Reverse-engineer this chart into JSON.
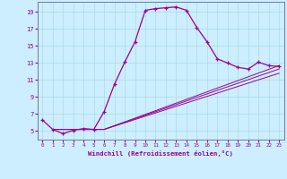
{
  "xlabel": "Windchill (Refroidissement éolien,°C)",
  "bg_color": "#cceeff",
  "line_color": "#990099",
  "grid_color": "#aadddd",
  "line1_x": [
    0,
    1,
    2,
    3,
    4,
    5,
    6,
    7,
    8,
    9,
    10,
    11,
    12,
    13,
    14,
    15,
    16,
    17,
    18,
    19,
    20,
    21,
    22,
    23
  ],
  "line1_y": [
    6.3,
    5.2,
    4.7,
    5.1,
    5.3,
    5.2,
    7.3,
    10.5,
    13.1,
    15.5,
    19.2,
    19.4,
    19.5,
    19.6,
    19.2,
    17.2,
    15.5,
    13.5,
    13.0,
    12.5,
    12.3,
    13.1,
    12.7,
    12.6
  ],
  "line2_x": [
    1,
    6,
    23
  ],
  "line2_y": [
    5.2,
    5.2,
    12.7
  ],
  "line3_x": [
    1,
    6,
    23
  ],
  "line3_y": [
    5.2,
    5.2,
    12.3
  ],
  "line4_x": [
    1,
    6,
    23
  ],
  "line4_y": [
    5.2,
    5.2,
    11.8
  ],
  "xlim": [
    -0.5,
    23.5
  ],
  "ylim": [
    4.0,
    20.2
  ],
  "yticks": [
    5,
    7,
    9,
    11,
    13,
    15,
    17,
    19
  ],
  "xticks": [
    0,
    1,
    2,
    3,
    4,
    5,
    6,
    7,
    8,
    9,
    10,
    11,
    12,
    13,
    14,
    15,
    16,
    17,
    18,
    19,
    20,
    21,
    22,
    23
  ]
}
